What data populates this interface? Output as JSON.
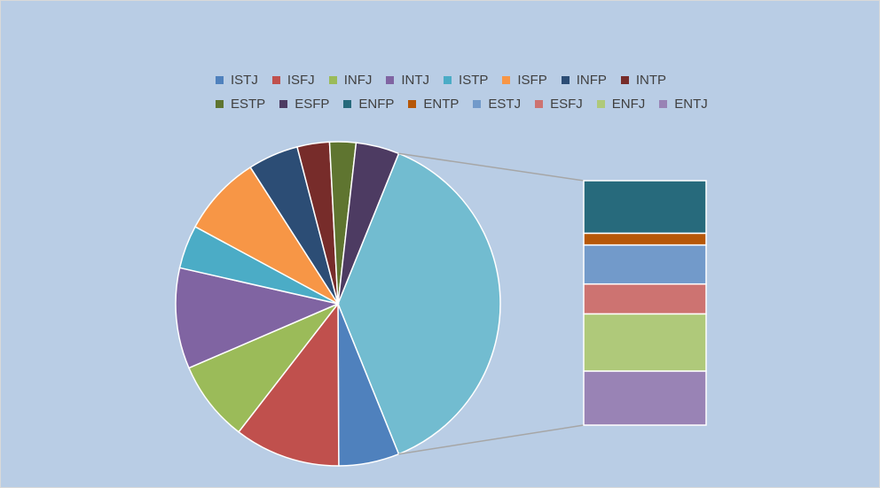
{
  "chart_data": {
    "type": "pie-of-pie",
    "title": "",
    "legend_position": "top",
    "series": [
      {
        "name": "ISTJ",
        "value": 6.0,
        "color": "#4f81bd"
      },
      {
        "name": "ISFJ",
        "value": 10.5,
        "color": "#c0504d"
      },
      {
        "name": "INFJ",
        "value": 8.0,
        "color": "#9bbb59"
      },
      {
        "name": "INTJ",
        "value": 10.0,
        "color": "#8064a2"
      },
      {
        "name": "ISTP",
        "value": 4.3,
        "color": "#4bacc6"
      },
      {
        "name": "ISFP",
        "value": 8.0,
        "color": "#f79646"
      },
      {
        "name": "INFP",
        "value": 5.0,
        "color": "#2c4d75"
      },
      {
        "name": "INTP",
        "value": 3.2,
        "color": "#772c2a"
      },
      {
        "name": "ESTP",
        "value": 2.6,
        "color": "#5f7530"
      },
      {
        "name": "ESFP",
        "value": 4.3,
        "color": "#4d3b62"
      },
      {
        "name": "ENFP",
        "value": 8.1,
        "color": "#276a7c"
      },
      {
        "name": "ENTP",
        "value": 1.8,
        "color": "#b65708"
      },
      {
        "name": "ESTJ",
        "value": 6.0,
        "color": "#729aca"
      },
      {
        "name": "ESFJ",
        "value": 4.6,
        "color": "#cd7371"
      },
      {
        "name": "ENFJ",
        "value": 8.8,
        "color": "#afc97a"
      },
      {
        "name": "ENTJ",
        "value": 8.3,
        "color": "#9983b5"
      }
    ],
    "secondary_start_index": 10,
    "grid": false
  }
}
